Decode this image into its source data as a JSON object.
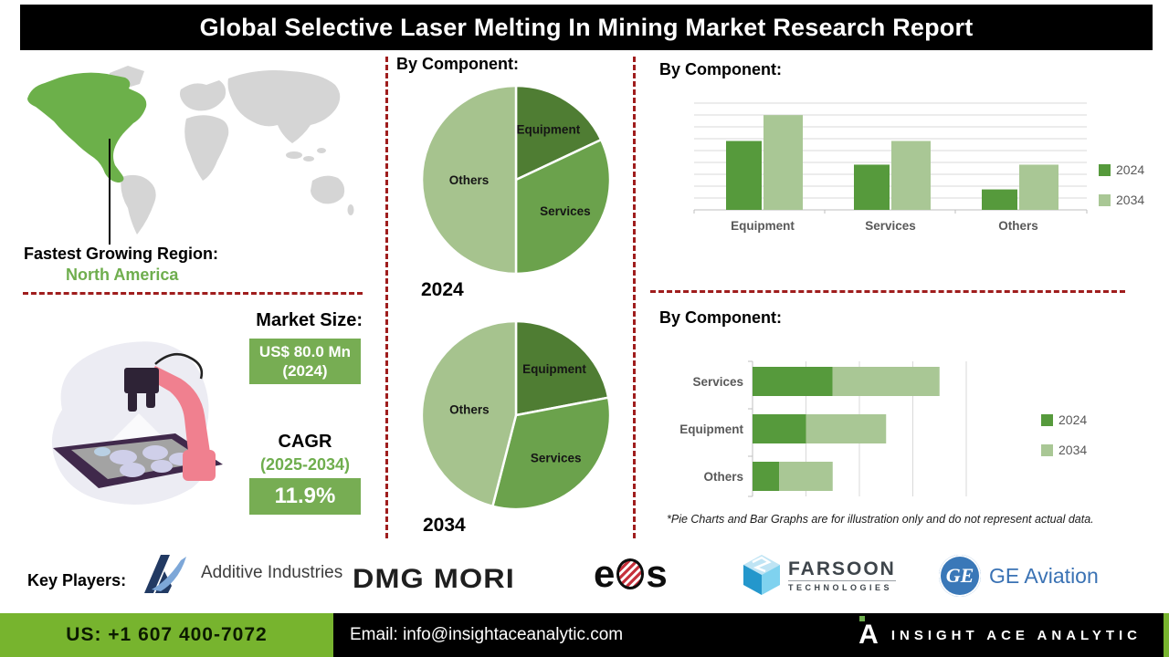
{
  "title": "Global Selective Laser Melting In Mining Market Research Report",
  "colors": {
    "accent_green": "#6fae4e",
    "map_highlight": "#6cb04a",
    "map_base": "#d5d5d5",
    "dark_series": "#569a3c",
    "light_series": "#a9c795",
    "dashed_line": "#9f1d1d",
    "footer_green": "#77b42e",
    "title_bg": "#000000"
  },
  "left": {
    "fastest_label": "Fastest Growing Region:",
    "fastest_region": "North America",
    "market_size_label": "Market Size:",
    "market_size_value": "US$ 80.0 Mn",
    "market_size_year": "(2024)",
    "cagr_label": "CAGR",
    "cagr_period": "(2025-2034)",
    "cagr_value": "11.9%"
  },
  "chart_data": [
    {
      "type": "pie",
      "title": "By Component:",
      "year_label": "2024",
      "legend_position": "none",
      "slices": [
        {
          "label": "Equipment",
          "value": 18,
          "color": "#4f7d33",
          "label_r": 0.64
        },
        {
          "label": "Services",
          "value": 32,
          "color": "#6ba24c",
          "label_r": 0.62
        },
        {
          "label": "Others",
          "value": 50,
          "color": "#a6c38e",
          "label_r": 0.5
        }
      ]
    },
    {
      "type": "pie",
      "title": "By Component:",
      "year_label": "2034",
      "legend_position": "none",
      "slices": [
        {
          "label": "Equipment",
          "value": 22,
          "color": "#4f7d33",
          "label_r": 0.64
        },
        {
          "label": "Services",
          "value": 32,
          "color": "#6ba24c",
          "label_r": 0.62
        },
        {
          "label": "Others",
          "value": 46,
          "color": "#a6c38e",
          "label_r": 0.5
        }
      ]
    },
    {
      "type": "bar",
      "title": "By Component:",
      "categories": [
        "Equipment",
        "Services",
        "Others"
      ],
      "series": [
        {
          "name": "2024",
          "color": "#569a3c",
          "values": [
            64,
            42,
            19
          ]
        },
        {
          "name": "2034",
          "color": "#a9c795",
          "values": [
            88,
            64,
            42
          ]
        }
      ],
      "ylim": [
        0,
        100
      ],
      "grid": "horizontal",
      "legend_position": "right"
    },
    {
      "type": "bar",
      "subtype": "horizontal-stacked",
      "title": "By Component:",
      "categories": [
        "Services",
        "Equipment",
        "Others"
      ],
      "series": [
        {
          "name": "2024",
          "color": "#569a3c",
          "values": [
            1.5,
            1.0,
            0.5
          ]
        },
        {
          "name": "2034",
          "color": "#a9c795",
          "values": [
            2.0,
            1.5,
            1.0
          ]
        }
      ],
      "xlim": [
        0,
        4
      ],
      "grid": "vertical",
      "legend_position": "right"
    }
  ],
  "disclaimer": "*Pie Charts and Bar Graphs are for illustration only and do not represent actual data.",
  "key_players": {
    "label": "Key Players:",
    "names": [
      "Additive Industries",
      "DMG MORI",
      "EOS",
      "Farsoon Technologies",
      "GE Aviation"
    ],
    "additive_text": "Additive Industries",
    "dmg_text": "DMG MORI",
    "eos_e": "e",
    "eos_s": "s",
    "farsoon_text": "FARSOON",
    "farsoon_sub": "TECHNOLOGIES",
    "ge_monogram": "GE",
    "ge_text": "GE Aviation"
  },
  "footer": {
    "phone": "US: +1 607 400-7072",
    "email": "Email: info@insightaceanalytic.com",
    "brand_mark": "A",
    "brand": "INSIGHT ACE ANALYTIC"
  }
}
